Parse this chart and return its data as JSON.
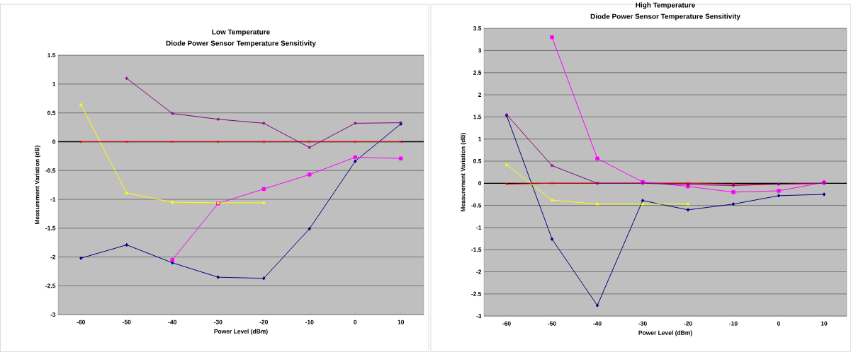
{
  "chart_data": [
    {
      "type": "line",
      "title": "Low Temperature",
      "subtitle": "Diode Power Sensor Temperature Sensitivity",
      "xlabel": "Power Level (dBm)",
      "ylabel": "Measurement Variation (dB)",
      "categories": [
        "-60",
        "-50",
        "-40",
        "-30",
        "-20",
        "-10",
        "0",
        "10"
      ],
      "series": [
        {
          "color": "#000080",
          "marker": "diamond",
          "values": [
            -2.02,
            -1.79,
            -2.1,
            -2.35,
            -2.37,
            -1.51,
            -0.34,
            0.31
          ]
        },
        {
          "color": "#ff00ff",
          "marker": "square",
          "values": [
            null,
            null,
            -2.05,
            -1.07,
            -0.82,
            -0.57,
            -0.27,
            -0.29
          ]
        },
        {
          "color": "#ffff00",
          "marker": "triangle",
          "values": [
            0.64,
            -0.89,
            -1.05,
            -1.06,
            -1.06,
            null,
            null,
            null
          ]
        },
        {
          "color": "#ff0000",
          "marker": "cross",
          "values": [
            0,
            0,
            0,
            0,
            0,
            0,
            0,
            0
          ]
        },
        {
          "color": "#800080",
          "marker": "cross",
          "values": [
            null,
            1.1,
            0.49,
            0.39,
            0.32,
            -0.1,
            0.32,
            0.33
          ]
        }
      ],
      "ylim": [
        -3,
        1.5
      ],
      "yticks": [
        -3,
        -2.5,
        -2,
        -1.5,
        -1,
        -0.5,
        0,
        0.5,
        1,
        1.5
      ],
      "grid": "y",
      "ref_lines": [
        {
          "axis": "y",
          "value": 0,
          "color": "#000000"
        }
      ]
    },
    {
      "type": "line",
      "title": "High Temperature",
      "subtitle": "Diode Power Sensor Temperature Sensitivity",
      "xlabel": "Power Level (dBm)",
      "ylabel": "Measurement Variation (dB)",
      "categories": [
        "-60",
        "-50",
        "-40",
        "-30",
        "-20",
        "-10",
        "0",
        "10"
      ],
      "series": [
        {
          "color": "#000080",
          "marker": "diamond",
          "values": [
            1.53,
            -1.26,
            -2.76,
            -0.39,
            -0.6,
            -0.47,
            -0.28,
            -0.25
          ]
        },
        {
          "color": "#ff00ff",
          "marker": "square",
          "values": [
            null,
            3.3,
            0.56,
            0.03,
            -0.07,
            -0.2,
            -0.17,
            0.02
          ]
        },
        {
          "color": "#ffff00",
          "marker": "triangle",
          "values": [
            0.42,
            -0.38,
            -0.47,
            -0.47,
            -0.47,
            null,
            null,
            null
          ]
        },
        {
          "color": "#ff0000",
          "marker": "cross",
          "values": [
            -0.02,
            0,
            0,
            0,
            0,
            -0.02,
            -0.02,
            0
          ]
        },
        {
          "color": "#800080",
          "marker": "cross",
          "values": [
            1.55,
            0.4,
            0,
            0,
            -0.03,
            -0.05,
            -0.02,
            0
          ]
        }
      ],
      "ylim": [
        -3,
        3.5
      ],
      "yticks": [
        -3,
        -2.5,
        -2,
        -1.5,
        -1,
        -0.5,
        0,
        0.5,
        1,
        1.5,
        2,
        2.5,
        3,
        3.5
      ],
      "grid": "y",
      "ref_lines": [
        {
          "axis": "y",
          "value": 0,
          "color": "#000000"
        }
      ]
    }
  ]
}
